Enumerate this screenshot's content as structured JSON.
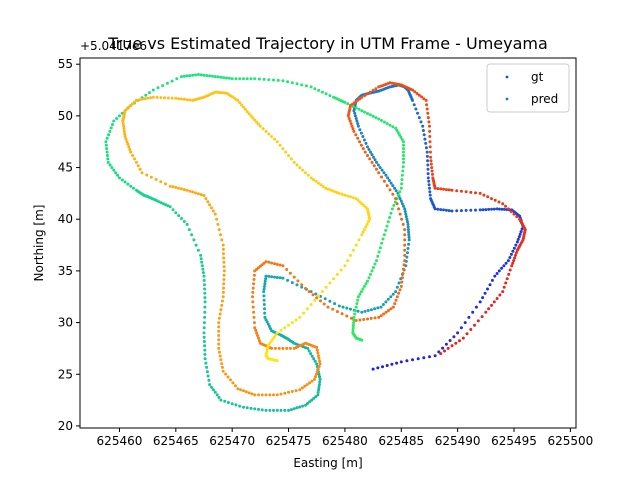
{
  "chart_data": {
    "type": "scatter",
    "title": "True vs Estimated Trajectory in UTM Frame - Umeyama",
    "xlabel": "Easting [m]",
    "ylabel": "Northing [m]",
    "y_offset_label": "+5.0417e6",
    "xlim": [
      625456.5,
      625500.5
    ],
    "ylim": [
      19.8,
      55.6
    ],
    "xticks": [
      625460,
      625465,
      625470,
      625475,
      625480,
      625485,
      625490,
      625495,
      625500
    ],
    "yticks": [
      20,
      25,
      30,
      35,
      40,
      45,
      50,
      55
    ],
    "grid": false,
    "legend": {
      "position": "top-right",
      "entries": [
        "gt",
        "pred"
      ]
    },
    "series": [
      {
        "name": "gt",
        "colormap": [
          "#1e1ee6",
          "#1e6ecd",
          "#14a0b4",
          "#14c896",
          "#1ee678",
          "#32e660"
        ],
        "x": [
          625482.5,
          625485,
          625488,
          625490,
          625492,
          625493.3,
          625494.5,
          625495.3,
          625495.8,
          625495.5,
          625494.8,
          625493.5,
          625492,
          625489.5,
          625488,
          625487.6,
          625487.4,
          625487.3,
          625486.9,
          625486,
          625485.6,
          625485.3,
          625484.8,
          625484,
          625483,
          625482.2,
          625481.5,
          625481,
          625480.8,
          625481.2,
          625482,
          625482.8,
          625483.8,
          625484.7,
          625485.3,
          625485.6,
          625485.7,
          625485.4,
          625484.5,
          625483.2,
          625481.5,
          625479.5,
          625477,
          625474.5,
          625473,
          625472.8,
          625472.9,
          625473.5,
          625474.3,
          625474.8,
          625475.5,
          625476.7,
          625477.5,
          625477.8,
          625477.6,
          625476.5,
          625475,
          625473,
          625471,
          625469,
          625468,
          625467.6,
          625467.5,
          625467.6,
          625467.5,
          625467.2,
          625466,
          625464.5,
          625463.3,
          625462.5,
          625462.2,
          625461.5,
          625460,
          625459,
          625458.8,
          625459.5,
          625461,
          625463,
          625465.5,
          625467,
          625468.5,
          625470,
          625472,
          625474.5,
          625477,
          625479,
          625480,
          625481.5,
          625483,
          625484.5,
          625485.2,
          625485.2,
          625485,
          625484.2,
          625483.5,
          625482.8,
          625482,
          625481.2,
          625480.8,
          625480.7,
          625481,
          625481.5
        ],
        "y": [
          25.5,
          26.2,
          26.8,
          29,
          32,
          34.5,
          36,
          37.8,
          39.3,
          40.3,
          40.9,
          41,
          40.9,
          40.8,
          41,
          42,
          44,
          46.5,
          49,
          51.5,
          52.5,
          52.8,
          53,
          52.8,
          52.4,
          52.2,
          52,
          51.5,
          50.5,
          49,
          47,
          45.5,
          44,
          42.5,
          41,
          39.5,
          38,
          35.5,
          33,
          31.5,
          31,
          31.6,
          33,
          34.3,
          34.5,
          33,
          30.5,
          29.2,
          28.8,
          28.5,
          28,
          27.5,
          26,
          24.5,
          23,
          22,
          21.5,
          21.5,
          21.8,
          22.5,
          24,
          26.5,
          29,
          32,
          34.5,
          36.5,
          39.5,
          41.2,
          41.8,
          42.2,
          42.3,
          42.8,
          44,
          45.5,
          47.5,
          49.5,
          51,
          52.5,
          53.8,
          54,
          53.8,
          53.6,
          53.6,
          53.4,
          52.8,
          51.8,
          51.3,
          50.5,
          49.7,
          48.8,
          47.5,
          45.5,
          43,
          41,
          38.5,
          36,
          34,
          32.5,
          30.5,
          29,
          28.5,
          28.3
        ]
      },
      {
        "name": "pred",
        "colormap": [
          "#e61e1e",
          "#f05014",
          "#f57814",
          "#ffa014",
          "#ffc814",
          "#ffe614"
        ],
        "x": [
          625488.5,
          625490.5,
          625492.5,
          625494,
          625494.8,
          625495.3,
          625495.8,
          625496,
          625495.5,
          625494,
          625492,
          625489.5,
          625488,
          625487.8,
          625487.6,
          625487.5,
          625487.2,
          625486,
          625485,
          625484,
          625483,
          625481.5,
          625480.5,
          625480.3,
          625480.8,
          625481.8,
          625483,
          625484.5,
          625485.3,
          625485.3,
          625485,
          625484.3,
          625483,
          625481,
          625478.5,
          625476.5,
          625474.5,
          625473,
          625472,
          625471.8,
          625472,
          625472.5,
          625473.5,
          625475.5,
          625476.5,
          625477.5,
          625477.8,
          625477.3,
          625476,
          625474,
          625472,
          625470.5,
          625469.2,
          625468.8,
          625468.8,
          625469.2,
          625469.3,
          625469.2,
          625468.5,
          625467.5,
          625466,
          625464.5,
          625462,
          625461,
          625460.5,
          625460.3,
          625460.5,
          625461.5,
          625463,
          625465,
          625466.5,
          625467.5,
          625468.5,
          625469.5,
          625470.5,
          625471.5,
          625472.5,
          625474,
          625475.5,
          625477,
          625478.3,
          625479.5,
          625481,
          625482,
          625482.2,
          625481.5,
          625480,
          625478,
          625476,
          625474,
          625473.2,
          625473,
          625473.2,
          625474
        ],
        "y": [
          27,
          28.5,
          31,
          33,
          35.5,
          37,
          38,
          39,
          40,
          41.5,
          42.5,
          42.8,
          43,
          44,
          46,
          49,
          51.5,
          52.5,
          53,
          53.2,
          52.8,
          51.8,
          51,
          50,
          48.5,
          46.5,
          44.5,
          42,
          39,
          36,
          33.5,
          31.5,
          30.5,
          30.2,
          31.5,
          33.3,
          35.5,
          35.9,
          35,
          32.5,
          29.5,
          28,
          27.5,
          27.5,
          28,
          27.6,
          26,
          24.5,
          23.5,
          23,
          23,
          23.6,
          25.3,
          27.5,
          30,
          32.5,
          35,
          37.5,
          40.5,
          42.3,
          42.8,
          43.2,
          44.5,
          46.5,
          48,
          49.5,
          50.5,
          51.5,
          51.8,
          51.7,
          51.5,
          51.8,
          52.3,
          52.2,
          51.5,
          50.2,
          49,
          47.5,
          45.5,
          44,
          43,
          42.5,
          42,
          41,
          40,
          38.5,
          35.5,
          33,
          30.5,
          29,
          27.8,
          26.8,
          26.5,
          26.3
        ]
      }
    ]
  }
}
